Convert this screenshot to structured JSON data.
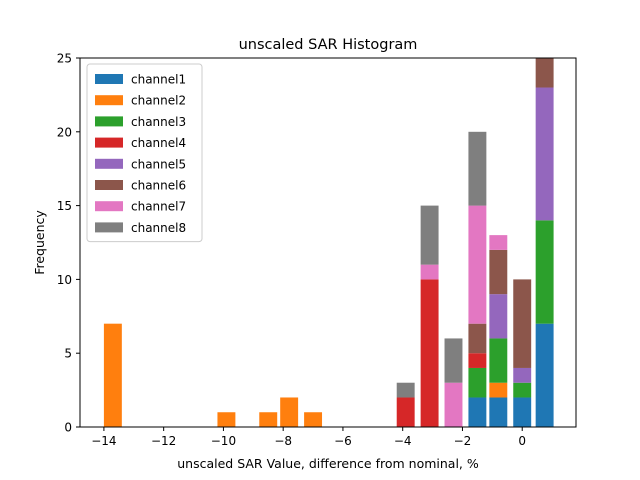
{
  "chart_data": {
    "type": "bar",
    "stacked": true,
    "title": "unscaled SAR Histogram",
    "xlabel": "unscaled SAR Value, difference from nominal, %",
    "ylabel": "Frequency",
    "xlim": [
      -14.8,
      1.8
    ],
    "ylim": [
      0,
      25
    ],
    "xticks": [
      -14,
      -12,
      -10,
      -8,
      -6,
      -4,
      -2,
      0
    ],
    "xtick_labels": [
      "−14",
      "−12",
      "−10",
      "−8",
      "−6",
      "−4",
      "−2",
      "0"
    ],
    "yticks": [
      0,
      5,
      10,
      15,
      20,
      25
    ],
    "ytick_labels": [
      "0",
      "5",
      "10",
      "15",
      "20",
      "25"
    ],
    "bar_width": 0.6,
    "legend_position": "upper-left",
    "series": [
      {
        "name": "channel1",
        "color": "#1f77b4",
        "points": [
          [
            -1.5,
            2
          ],
          [
            -0.8,
            2
          ],
          [
            0,
            2
          ],
          [
            0.75,
            7
          ]
        ]
      },
      {
        "name": "channel2",
        "color": "#ff7f0e",
        "points": [
          [
            -13.7,
            7
          ],
          [
            -9.9,
            1
          ],
          [
            -8.5,
            1
          ],
          [
            -7.8,
            2
          ],
          [
            -7.0,
            1
          ],
          [
            -0.8,
            1
          ]
        ]
      },
      {
        "name": "channel3",
        "color": "#2ca02c",
        "points": [
          [
            -1.5,
            2
          ],
          [
            -0.8,
            3
          ],
          [
            0,
            1
          ],
          [
            0.75,
            7
          ]
        ]
      },
      {
        "name": "channel4",
        "color": "#d62728",
        "points": [
          [
            -3.9,
            2
          ],
          [
            -3.1,
            10
          ],
          [
            -1.5,
            1
          ]
        ]
      },
      {
        "name": "channel5",
        "color": "#9467bd",
        "points": [
          [
            -0.8,
            3
          ],
          [
            0,
            1
          ],
          [
            0.75,
            9
          ]
        ]
      },
      {
        "name": "channel6",
        "color": "#8c564b",
        "points": [
          [
            -1.5,
            2
          ],
          [
            -0.8,
            3
          ],
          [
            0,
            6
          ],
          [
            0.75,
            2
          ]
        ]
      },
      {
        "name": "channel7",
        "color": "#e377c2",
        "points": [
          [
            -3.1,
            1
          ],
          [
            -2.3,
            3
          ],
          [
            -1.5,
            8
          ],
          [
            -0.8,
            1
          ]
        ]
      },
      {
        "name": "channel8",
        "color": "#7f7f7f",
        "points": [
          [
            -3.9,
            1
          ],
          [
            -3.1,
            4
          ],
          [
            -2.3,
            3
          ],
          [
            -1.5,
            5
          ]
        ]
      }
    ]
  }
}
